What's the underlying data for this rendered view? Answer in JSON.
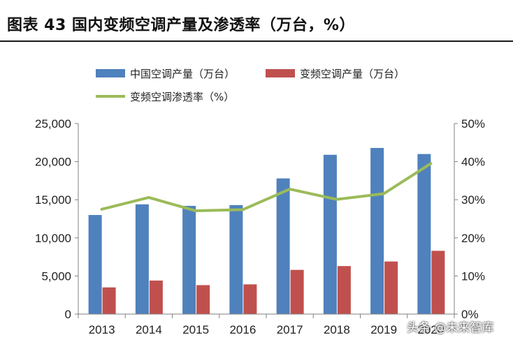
{
  "header": {
    "title": "图表 43 国内变频空调产量及渗透率（万台，%）"
  },
  "watermark": "头条 @未来智库",
  "colors": {
    "total_bar": "#4F81BD",
    "inverter_bar": "#C0504D",
    "penetration_line": "#9BBB59"
  },
  "chart_data": {
    "type": "bar",
    "categories": [
      "2013",
      "2014",
      "2015",
      "2016",
      "2017",
      "2018",
      "2019",
      "2020"
    ],
    "series": [
      {
        "name": "中国空调产量（万台）",
        "type": "bar",
        "axis": "left",
        "values": [
          13000,
          14400,
          14200,
          14300,
          17800,
          20900,
          21800,
          21000
        ]
      },
      {
        "name": "变频空调产量（万台）",
        "type": "bar",
        "axis": "left",
        "values": [
          3500,
          4400,
          3800,
          3900,
          5800,
          6300,
          6900,
          8300
        ]
      },
      {
        "name": "变频空调渗透率（%）",
        "type": "line",
        "axis": "right",
        "values": [
          27.5,
          30.6,
          27.1,
          27.4,
          32.8,
          30.1,
          31.6,
          39.5
        ]
      }
    ],
    "y_left": {
      "min": 0,
      "max": 25000,
      "ticks": [
        "0",
        "5,000",
        "10,000",
        "15,000",
        "20,000",
        "25,000"
      ]
    },
    "y_right": {
      "min": 0,
      "max": 50,
      "ticks": [
        "0%",
        "10%",
        "20%",
        "30%",
        "40%",
        "50%"
      ]
    },
    "grid": false,
    "legend": "top"
  }
}
